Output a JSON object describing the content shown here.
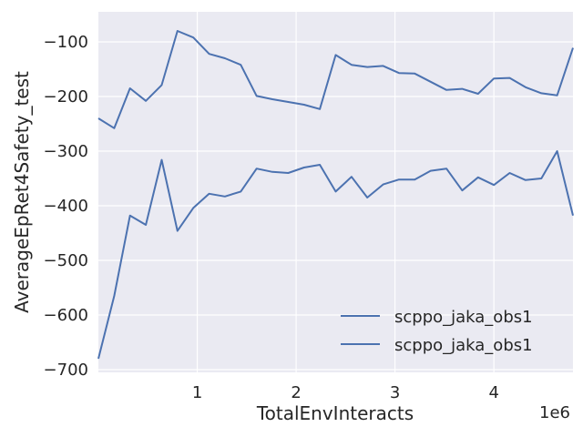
{
  "chart_data": {
    "type": "line",
    "xlabel": "TotalEnvInteracts",
    "ylabel": "AverageEpRet4Safety_test",
    "x_offset_label": "1e6",
    "xlim": [
      0.0,
      4.8
    ],
    "ylim": [
      -705,
      -45
    ],
    "x_ticks": [
      1,
      2,
      3,
      4
    ],
    "x_tick_labels": [
      "1",
      "2",
      "3",
      "4"
    ],
    "y_ticks": [
      -700,
      -600,
      -500,
      -400,
      -300,
      -200,
      -100
    ],
    "y_tick_labels": [
      "−700",
      "−600",
      "−500",
      "−400",
      "−300",
      "−200",
      "−100"
    ],
    "grid": true,
    "legend_position": "lower-right",
    "line_color": "#4c72b0",
    "x": [
      0.0,
      0.16,
      0.32,
      0.48,
      0.64,
      0.8,
      0.96,
      1.12,
      1.28,
      1.44,
      1.6,
      1.76,
      1.92,
      2.08,
      2.24,
      2.4,
      2.56,
      2.72,
      2.88,
      3.04,
      3.2,
      3.36,
      3.52,
      3.68,
      3.84,
      4.0,
      4.16,
      4.32,
      4.48,
      4.64,
      4.8
    ],
    "series": [
      {
        "name": "scppo_jaka_obs1",
        "values": [
          -240,
          -258,
          -185,
          -208,
          -179,
          -80,
          -92,
          -122,
          -130,
          -142,
          -199,
          -205,
          -210,
          -215,
          -223,
          -124,
          -142,
          -146,
          -144,
          -157,
          -158,
          -173,
          -188,
          -186,
          -195,
          -167,
          -166,
          -183,
          -194,
          -198,
          -111
        ]
      },
      {
        "name": "scppo_jaka_obs1",
        "values": [
          -680,
          -565,
          -418,
          -435,
          -316,
          -446,
          -404,
          -378,
          -383,
          -374,
          -332,
          -338,
          -340,
          -330,
          -325,
          -374,
          -347,
          -385,
          -361,
          -352,
          -352,
          -336,
          -332,
          -372,
          -348,
          -362,
          -340,
          -353,
          -350,
          -300,
          -418
        ]
      }
    ]
  }
}
